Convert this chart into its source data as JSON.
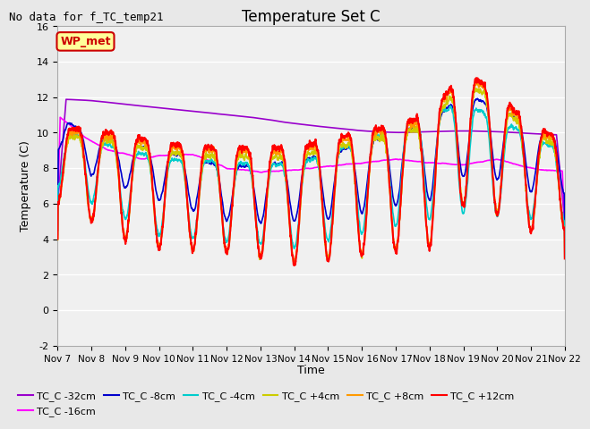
{
  "title": "Temperature Set C",
  "suptitle": "No data for f_TC_temp21",
  "xlabel": "Time",
  "ylabel": "Temperature (C)",
  "ylim": [
    -2,
    16
  ],
  "yticks": [
    -2,
    0,
    2,
    4,
    6,
    8,
    10,
    12,
    14,
    16
  ],
  "xtick_labels": [
    "Nov 7",
    "Nov 8",
    "Nov 9",
    "Nov 10",
    "Nov 11",
    "Nov 12",
    "Nov 13",
    "Nov 14",
    "Nov 15",
    "Nov 16",
    "Nov 17",
    "Nov 18",
    "Nov 19",
    "Nov 20",
    "Nov 21",
    "Nov 22"
  ],
  "series_colors": {
    "TC_C -32cm": "#9900cc",
    "TC_C -16cm": "#ff00ff",
    "TC_C -8cm": "#0000cc",
    "TC_C -4cm": "#00cccc",
    "TC_C +4cm": "#cccc00",
    "TC_C +8cm": "#ff9900",
    "TC_C +12cm": "#ff0000"
  },
  "wp_met_color": "#cc0000",
  "wp_met_bg": "#ffff99",
  "background_color": "#e8e8e8",
  "plot_bg": "#f0f0f0",
  "grid_color": "#ffffff"
}
